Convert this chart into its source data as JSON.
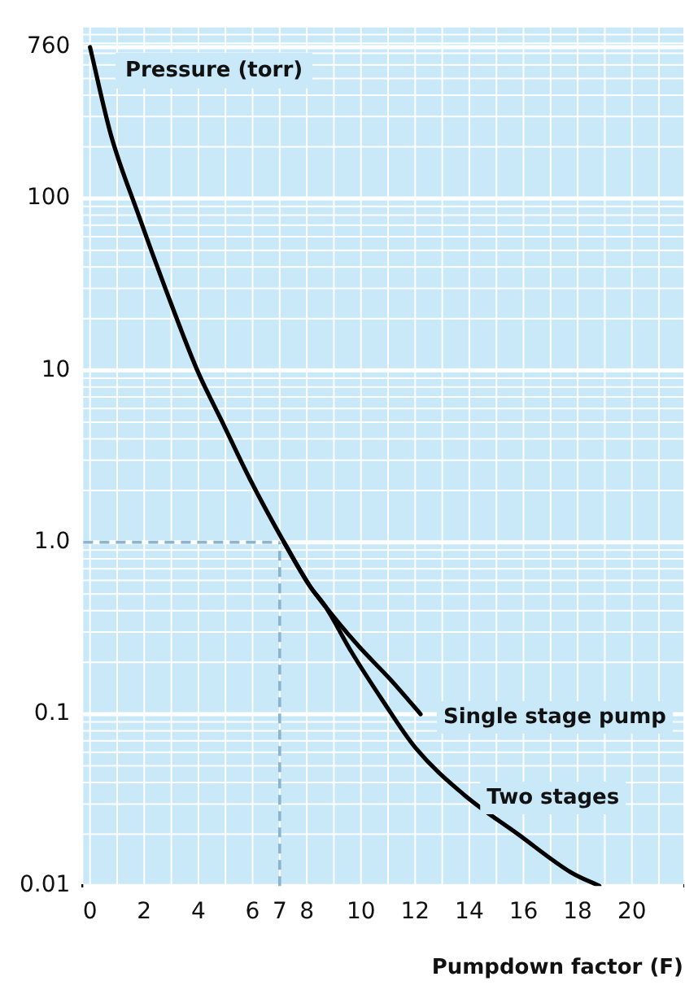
{
  "chart_data": {
    "type": "line",
    "xlabel": "Pumpdown factor (F)",
    "ylabel": "Pressure (torr)",
    "log": "y",
    "xlim": [
      -0.25,
      21.9
    ],
    "xticks": [
      0,
      2,
      4,
      6,
      7,
      8,
      10,
      12,
      14,
      16,
      18,
      20
    ],
    "ylim": [
      0.01,
      1000
    ],
    "yticks": [
      0.01,
      0.1,
      {
        "value": 1,
        "label": "1.0"
      },
      10,
      100,
      760
    ],
    "grid": true,
    "legend": false,
    "marker": "none",
    "line_style": "solid",
    "ref_lines": [
      {
        "axis": "x",
        "value": 7,
        "color": "#8cb4cc",
        "line_style": "dashed"
      },
      {
        "axis": "y",
        "value": 1,
        "color": "#8cb4cc",
        "line_style": "dashed"
      }
    ],
    "series": [
      {
        "name": "Single stage pump",
        "color": "#000000",
        "x": [
          7.16,
          8.1,
          8.7,
          9.9,
          11.07,
          12.2
        ],
        "values": [
          1.0,
          0.56,
          0.42,
          0.25,
          0.16,
          0.1
        ]
      },
      {
        "name": "Two stages",
        "color": "#000000",
        "x": [
          0,
          0.77,
          1.78,
          2.78,
          3.96,
          4.91,
          5.92,
          7.16,
          8.1,
          8.7,
          9.65,
          10.8,
          12.0,
          13.8,
          15.8,
          17.75,
          18.8
        ],
        "values": [
          760,
          235,
          81,
          30,
          10,
          4.9,
          2.3,
          1.0,
          0.56,
          0.42,
          0.23,
          0.12,
          0.064,
          0.034,
          0.02,
          0.012,
          0.01
        ]
      }
    ]
  }
}
